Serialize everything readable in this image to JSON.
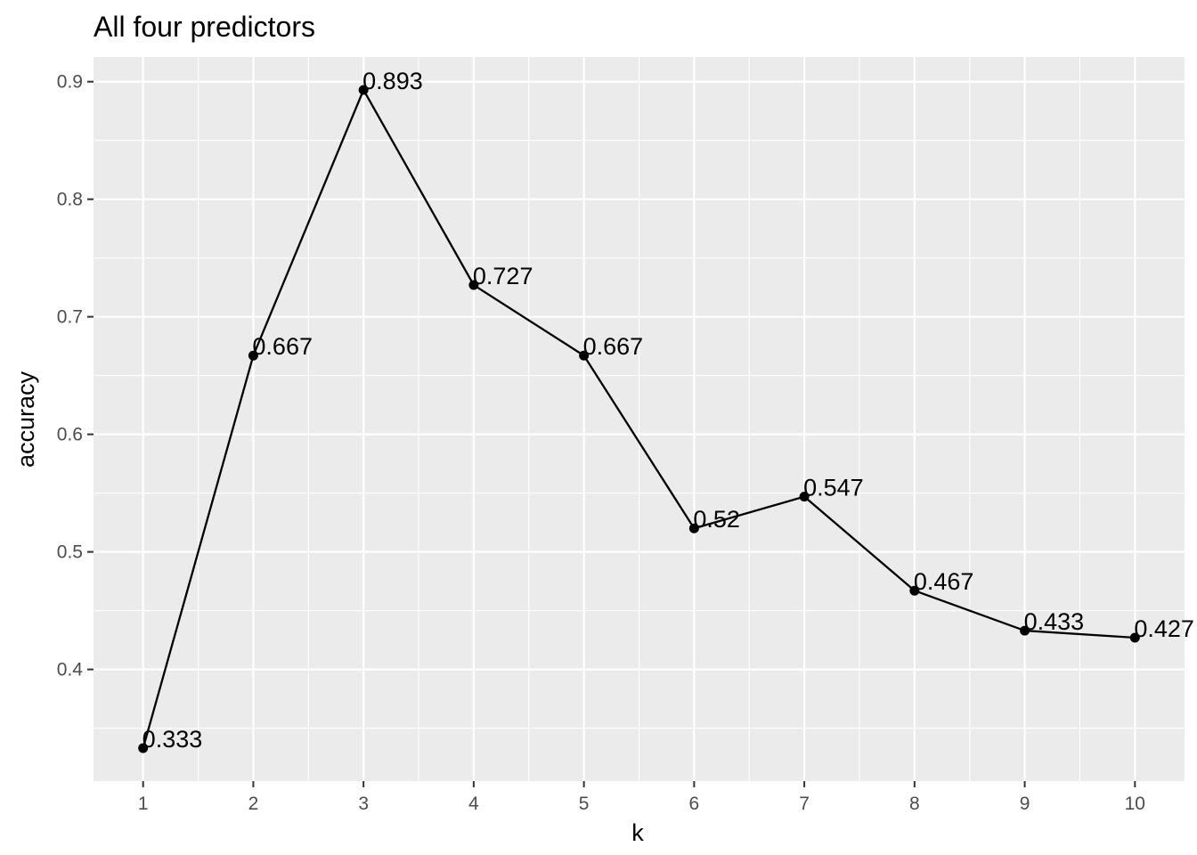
{
  "chart_data": {
    "type": "line",
    "title": "All four predictors",
    "xlabel": "k",
    "ylabel": "accuracy",
    "x": [
      1,
      2,
      3,
      4,
      5,
      6,
      7,
      8,
      9,
      10
    ],
    "series": [
      {
        "values": [
          0.333,
          0.667,
          0.893,
          0.727,
          0.667,
          0.52,
          0.547,
          0.467,
          0.433,
          0.427
        ],
        "labels": [
          "0.333",
          "0.667",
          "0.893",
          "0.727",
          "0.667",
          "0.52",
          "0.547",
          "0.467",
          "0.433",
          "0.427"
        ]
      }
    ],
    "xlim": [
      0.55,
      10.45
    ],
    "ylim": [
      0.305,
      0.921
    ],
    "x_ticks": [
      1,
      2,
      3,
      4,
      5,
      6,
      7,
      8,
      9,
      10
    ],
    "x_tick_labels": [
      "1",
      "2",
      "3",
      "4",
      "5",
      "6",
      "7",
      "8",
      "9",
      "10"
    ],
    "y_ticks": [
      0.4,
      0.5,
      0.6,
      0.7,
      0.8,
      0.9
    ],
    "y_tick_labels": [
      "0.4",
      "0.5",
      "0.6",
      "0.7",
      "0.8",
      "0.9"
    ],
    "grid": true,
    "legend": "none",
    "colors": {
      "panel_background": "#ebebeb",
      "grid": "#ffffff",
      "line": "#000000",
      "point": "#000000"
    }
  }
}
